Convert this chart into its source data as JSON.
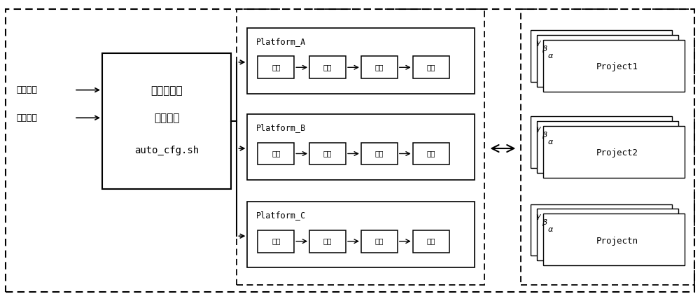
{
  "bg_color": "#ffffff",
  "outer_border_color": "#000000",
  "box_color": "#000000",
  "text_color": "#000000",
  "left_labels": [
    "项目代号",
    "平台代号"
  ],
  "main_box_lines": [
    "平台自适应",
    "配置脚本",
    "auto_cfg.sh"
  ],
  "platforms": [
    "Platform_A",
    "Platform_B",
    "Platform_C"
  ],
  "platform_steps": [
    "仿真",
    "综合",
    "实现",
    "测试"
  ],
  "projects": [
    "Project1",
    "Project2",
    "Projectn"
  ],
  "greek_labels": [
    "γ",
    "β",
    "α"
  ]
}
